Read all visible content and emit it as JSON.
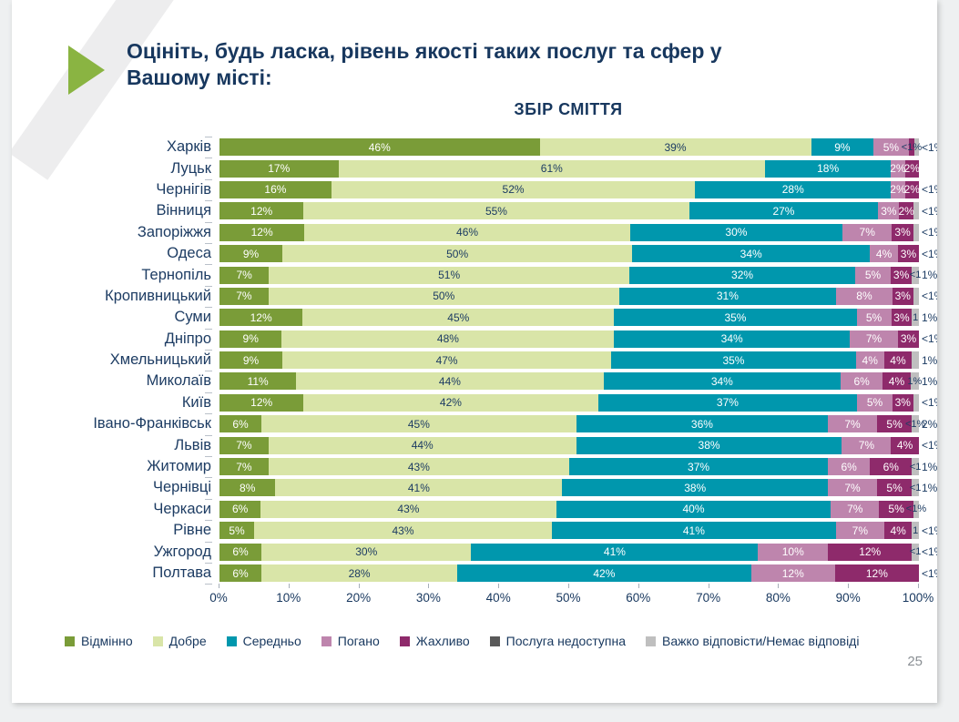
{
  "slide": {
    "question_title_line1": "Оцініть, будь ласка, рівень якості таких послуг та сфер у",
    "question_title_line2": "Вашому місті:",
    "page_number": "25"
  },
  "colors": {
    "title_navy": "#17375e",
    "arrow_green": "#8ab442",
    "page_gray": "#eef0f1"
  },
  "chart_data": {
    "type": "bar",
    "variant": "horizontal-stacked-100",
    "title": "ЗБІР СМІТТЯ",
    "xlabel": "",
    "ylabel": "",
    "grid": false,
    "legend_position": "bottom",
    "x_ticks": [
      "0%",
      "10%",
      "20%",
      "30%",
      "40%",
      "50%",
      "60%",
      "70%",
      "80%",
      "90%",
      "100%"
    ],
    "legend": [
      {
        "label": "Відмінно",
        "color": "#7a9c38"
      },
      {
        "label": "Добре",
        "color": "#d9e5a8"
      },
      {
        "label": "Середньо",
        "color": "#0097ad"
      },
      {
        "label": "Погано",
        "color": "#be85ad"
      },
      {
        "label": "Жахливо",
        "color": "#8e2a6b"
      },
      {
        "label": "Послуга недоступна",
        "color": "#595959"
      },
      {
        "label": "Важко відповісти/Немає відповіді",
        "color": "#bfbfbf"
      }
    ],
    "rows": [
      {
        "city": "Харків",
        "segments": [
          {
            "legend": 0,
            "value": 46,
            "label": "46%"
          },
          {
            "legend": 1,
            "value": 39,
            "label": "39%"
          },
          {
            "legend": 2,
            "value": 9,
            "label": "9%"
          },
          {
            "legend": 3,
            "value": 5,
            "label": "5%"
          },
          {
            "legend": 4,
            "value": 0.9,
            "label": "<1%",
            "dark": true
          },
          {
            "legend": 6,
            "value": 0.6,
            "label": ""
          }
        ],
        "end_label": "<1%"
      },
      {
        "city": "Луцьк",
        "segments": [
          {
            "legend": 0,
            "value": 17,
            "label": "17%"
          },
          {
            "legend": 1,
            "value": 61,
            "label": "61%"
          },
          {
            "legend": 2,
            "value": 18,
            "label": "18%"
          },
          {
            "legend": 3,
            "value": 2,
            "label": "2%"
          },
          {
            "legend": 4,
            "value": 2,
            "label": "2%"
          }
        ],
        "end_label": ""
      },
      {
        "city": "Чернігів",
        "segments": [
          {
            "legend": 0,
            "value": 16,
            "label": "16%"
          },
          {
            "legend": 1,
            "value": 52,
            "label": "52%"
          },
          {
            "legend": 2,
            "value": 28,
            "label": "28%"
          },
          {
            "legend": 3,
            "value": 2,
            "label": "2%"
          },
          {
            "legend": 4,
            "value": 2,
            "label": "2%"
          }
        ],
        "end_label": "<1%"
      },
      {
        "city": "Вінниця",
        "segments": [
          {
            "legend": 0,
            "value": 12,
            "label": "12%"
          },
          {
            "legend": 1,
            "value": 55,
            "label": "55%"
          },
          {
            "legend": 2,
            "value": 27,
            "label": "27%"
          },
          {
            "legend": 3,
            "value": 3,
            "label": "3%"
          },
          {
            "legend": 4,
            "value": 2,
            "label": "2%"
          },
          {
            "legend": 6,
            "value": 0.8,
            "label": ""
          }
        ],
        "end_label": "<1%"
      },
      {
        "city": "Запоріжжя",
        "segments": [
          {
            "legend": 0,
            "value": 12,
            "label": "12%"
          },
          {
            "legend": 1,
            "value": 46,
            "label": "46%"
          },
          {
            "legend": 2,
            "value": 30,
            "label": "30%"
          },
          {
            "legend": 3,
            "value": 7,
            "label": "7%"
          },
          {
            "legend": 4,
            "value": 3,
            "label": "3%"
          },
          {
            "legend": 6,
            "value": 0.8,
            "label": ""
          }
        ],
        "end_label": "<1%"
      },
      {
        "city": "Одеса",
        "segments": [
          {
            "legend": 0,
            "value": 9,
            "label": "9%"
          },
          {
            "legend": 1,
            "value": 50,
            "label": "50%"
          },
          {
            "legend": 2,
            "value": 34,
            "label": "34%"
          },
          {
            "legend": 3,
            "value": 4,
            "label": "4%"
          },
          {
            "legend": 4,
            "value": 3,
            "label": "3%"
          }
        ],
        "end_label": "<1%"
      },
      {
        "city": "Тернопіль",
        "segments": [
          {
            "legend": 0,
            "value": 7,
            "label": "7%"
          },
          {
            "legend": 1,
            "value": 51,
            "label": "51%"
          },
          {
            "legend": 2,
            "value": 32,
            "label": "32%"
          },
          {
            "legend": 3,
            "value": 5,
            "label": "5%"
          },
          {
            "legend": 4,
            "value": 3,
            "label": "3%"
          },
          {
            "legend": 6,
            "value": 1,
            "label": "<1",
            "dark": true
          }
        ],
        "end_label": "1%"
      },
      {
        "city": "Кропивницький",
        "segments": [
          {
            "legend": 0,
            "value": 7,
            "label": "7%"
          },
          {
            "legend": 1,
            "value": 50,
            "label": "50%"
          },
          {
            "legend": 2,
            "value": 31,
            "label": "31%"
          },
          {
            "legend": 3,
            "value": 8,
            "label": "8%"
          },
          {
            "legend": 4,
            "value": 3,
            "label": "3%"
          },
          {
            "legend": 6,
            "value": 0.8,
            "label": ""
          }
        ],
        "end_label": "<1%"
      },
      {
        "city": "Суми",
        "segments": [
          {
            "legend": 0,
            "value": 12,
            "label": "12%"
          },
          {
            "legend": 1,
            "value": 45,
            "label": "45%"
          },
          {
            "legend": 2,
            "value": 35,
            "label": "35%"
          },
          {
            "legend": 3,
            "value": 5,
            "label": "5%"
          },
          {
            "legend": 4,
            "value": 3,
            "label": "3%"
          },
          {
            "legend": 6,
            "value": 1,
            "label": "1",
            "dark": true
          }
        ],
        "end_label": "1%"
      },
      {
        "city": "Дніпро",
        "segments": [
          {
            "legend": 0,
            "value": 9,
            "label": "9%"
          },
          {
            "legend": 1,
            "value": 48,
            "label": "48%"
          },
          {
            "legend": 2,
            "value": 34,
            "label": "34%"
          },
          {
            "legend": 3,
            "value": 7,
            "label": "7%"
          },
          {
            "legend": 4,
            "value": 3,
            "label": "3%"
          }
        ],
        "end_label": "<1%"
      },
      {
        "city": "Хмельницький",
        "segments": [
          {
            "legend": 0,
            "value": 9,
            "label": "9%"
          },
          {
            "legend": 1,
            "value": 47,
            "label": "47%"
          },
          {
            "legend": 2,
            "value": 35,
            "label": "35%"
          },
          {
            "legend": 3,
            "value": 4,
            "label": "4%"
          },
          {
            "legend": 4,
            "value": 4,
            "label": "4%"
          },
          {
            "legend": 6,
            "value": 1,
            "label": ""
          }
        ],
        "end_label": "1%"
      },
      {
        "city": "Миколаїв",
        "segments": [
          {
            "legend": 0,
            "value": 11,
            "label": "11%"
          },
          {
            "legend": 1,
            "value": 44,
            "label": "44%"
          },
          {
            "legend": 2,
            "value": 34,
            "label": "34%"
          },
          {
            "legend": 3,
            "value": 6,
            "label": "6%"
          },
          {
            "legend": 4,
            "value": 4,
            "label": "4%"
          },
          {
            "legend": 6,
            "value": 1.2,
            "label": "1%",
            "dark": true
          }
        ],
        "end_label": "1%"
      },
      {
        "city": "Київ",
        "segments": [
          {
            "legend": 0,
            "value": 12,
            "label": "12%"
          },
          {
            "legend": 1,
            "value": 42,
            "label": "42%"
          },
          {
            "legend": 2,
            "value": 37,
            "label": "37%"
          },
          {
            "legend": 3,
            "value": 5,
            "label": "5%"
          },
          {
            "legend": 4,
            "value": 3,
            "label": "3%"
          },
          {
            "legend": 6,
            "value": 0.8,
            "label": ""
          }
        ],
        "end_label": "<1%"
      },
      {
        "city": "Івано-Франківськ",
        "segments": [
          {
            "legend": 0,
            "value": 6,
            "label": "6%"
          },
          {
            "legend": 1,
            "value": 45,
            "label": "45%"
          },
          {
            "legend": 2,
            "value": 36,
            "label": "36%"
          },
          {
            "legend": 3,
            "value": 7,
            "label": "7%"
          },
          {
            "legend": 4,
            "value": 5,
            "label": "5%"
          },
          {
            "legend": 6,
            "value": 1,
            "label": "<1%",
            "dark": true
          }
        ],
        "end_label": "2%"
      },
      {
        "city": "Львів",
        "segments": [
          {
            "legend": 0,
            "value": 7,
            "label": "7%"
          },
          {
            "legend": 1,
            "value": 44,
            "label": "44%"
          },
          {
            "legend": 2,
            "value": 38,
            "label": "38%"
          },
          {
            "legend": 3,
            "value": 7,
            "label": "7%"
          },
          {
            "legend": 4,
            "value": 4,
            "label": "4%"
          }
        ],
        "end_label": "<1%"
      },
      {
        "city": "Житомир",
        "segments": [
          {
            "legend": 0,
            "value": 7,
            "label": "7%"
          },
          {
            "legend": 1,
            "value": 43,
            "label": "43%"
          },
          {
            "legend": 2,
            "value": 37,
            "label": "37%"
          },
          {
            "legend": 3,
            "value": 6,
            "label": "6%"
          },
          {
            "legend": 4,
            "value": 6,
            "label": "6%"
          },
          {
            "legend": 6,
            "value": 1,
            "label": "<1",
            "dark": true
          }
        ],
        "end_label": "1%"
      },
      {
        "city": "Чернівці",
        "segments": [
          {
            "legend": 0,
            "value": 8,
            "label": "8%"
          },
          {
            "legend": 1,
            "value": 41,
            "label": "41%"
          },
          {
            "legend": 2,
            "value": 38,
            "label": "38%"
          },
          {
            "legend": 3,
            "value": 7,
            "label": "7%"
          },
          {
            "legend": 4,
            "value": 5,
            "label": "5%"
          },
          {
            "legend": 6,
            "value": 1,
            "label": "<1",
            "dark": true
          }
        ],
        "end_label": "1%"
      },
      {
        "city": "Черкаси",
        "segments": [
          {
            "legend": 0,
            "value": 6,
            "label": "6%"
          },
          {
            "legend": 1,
            "value": 43,
            "label": "43%"
          },
          {
            "legend": 2,
            "value": 40,
            "label": "40%"
          },
          {
            "legend": 3,
            "value": 7,
            "label": "7%"
          },
          {
            "legend": 4,
            "value": 5,
            "label": "5%"
          },
          {
            "legend": 6,
            "value": 0.8,
            "label": "<1%",
            "dark": true
          }
        ],
        "end_label": ""
      },
      {
        "city": "Рівне",
        "segments": [
          {
            "legend": 0,
            "value": 5,
            "label": "5%"
          },
          {
            "legend": 1,
            "value": 43,
            "label": "43%"
          },
          {
            "legend": 2,
            "value": 41,
            "label": "41%"
          },
          {
            "legend": 3,
            "value": 7,
            "label": "7%"
          },
          {
            "legend": 4,
            "value": 4,
            "label": "4%"
          },
          {
            "legend": 6,
            "value": 1,
            "label": "1",
            "dark": true
          }
        ],
        "end_label": "<1%"
      },
      {
        "city": "Ужгород",
        "segments": [
          {
            "legend": 0,
            "value": 6,
            "label": "6%"
          },
          {
            "legend": 1,
            "value": 30,
            "label": "30%"
          },
          {
            "legend": 2,
            "value": 41,
            "label": "41%"
          },
          {
            "legend": 3,
            "value": 10,
            "label": "10%"
          },
          {
            "legend": 4,
            "value": 12,
            "label": "12%"
          },
          {
            "legend": 6,
            "value": 1,
            "label": "<1",
            "dark": true
          }
        ],
        "end_label": "<1%"
      },
      {
        "city": "Полтава",
        "segments": [
          {
            "legend": 0,
            "value": 6,
            "label": "6%"
          },
          {
            "legend": 1,
            "value": 28,
            "label": "28%"
          },
          {
            "legend": 2,
            "value": 42,
            "label": "42%"
          },
          {
            "legend": 3,
            "value": 12,
            "label": "12%"
          },
          {
            "legend": 4,
            "value": 12,
            "label": "12%"
          }
        ],
        "end_label": "<1%"
      }
    ]
  }
}
